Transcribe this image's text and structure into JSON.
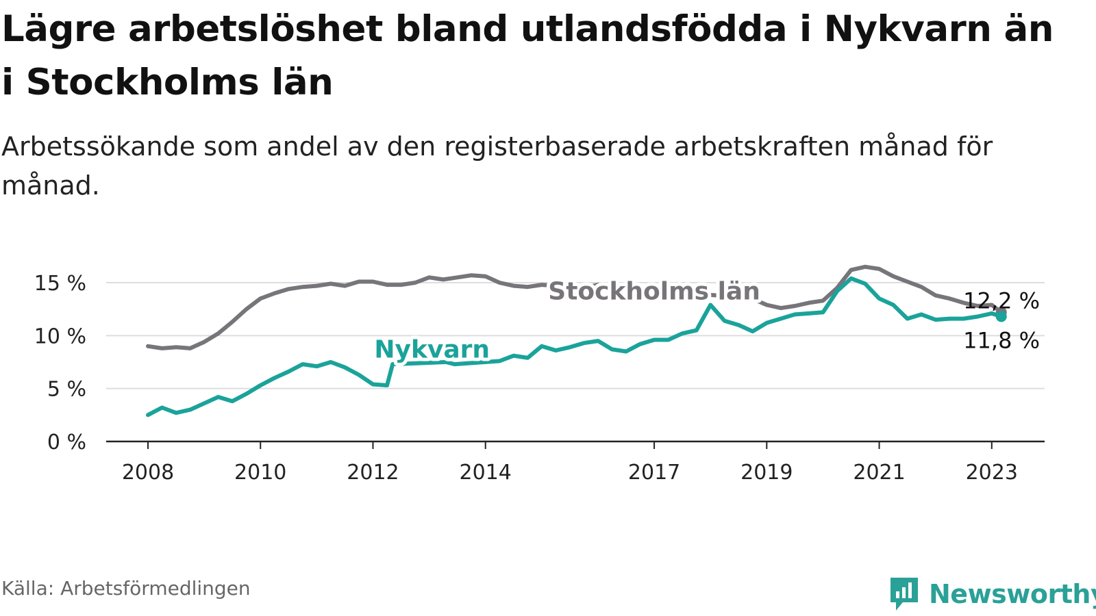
{
  "title": "Lägre arbetslöshet bland utlandsfödda i Nykvarn än i Stockholms län",
  "subtitle": "Arbetssökande som andel av den registerbaserade arbetskraften månad för månad.",
  "source": "Källa: Arbetsförmedlingen",
  "brand": {
    "name": "Newsworthy",
    "icon": "newsworthy-logo-icon",
    "color": "#2aa197"
  },
  "colors": {
    "nykvarn": "#1aa39a",
    "stockholm": "#78757a",
    "grid": "#dddddd",
    "axis": "#222222"
  },
  "chart_data": {
    "type": "line",
    "title": "Lägre arbetslöshet bland utlandsfödda i Nykvarn än i Stockholms län",
    "xlabel": "",
    "ylabel": "",
    "xlim": [
      2008,
      2023.9
    ],
    "ylim": [
      0,
      17
    ],
    "x_ticks": [
      {
        "value": 2008,
        "label": "2008"
      },
      {
        "value": 2010,
        "label": "2010"
      },
      {
        "value": 2012,
        "label": "2012"
      },
      {
        "value": 2014,
        "label": "2014"
      },
      {
        "value": 2017,
        "label": "2017"
      },
      {
        "value": 2019,
        "label": "2019"
      },
      {
        "value": 2021,
        "label": "2021"
      },
      {
        "value": 2023,
        "label": "2023"
      }
    ],
    "y_ticks": [
      {
        "value": 0,
        "label": "0 %"
      },
      {
        "value": 5,
        "label": "5 %"
      },
      {
        "value": 10,
        "label": "10 %"
      },
      {
        "value": 15,
        "label": "15 %"
      }
    ],
    "series": [
      {
        "name": "Stockholms län",
        "color": "#78757a",
        "end_label": "12,2 %",
        "points": [
          [
            2008.0,
            9.0
          ],
          [
            2008.25,
            8.8
          ],
          [
            2008.5,
            8.9
          ],
          [
            2008.75,
            8.8
          ],
          [
            2009.0,
            9.4
          ],
          [
            2009.25,
            10.2
          ],
          [
            2009.5,
            11.3
          ],
          [
            2009.75,
            12.5
          ],
          [
            2010.0,
            13.5
          ],
          [
            2010.25,
            14.0
          ],
          [
            2010.5,
            14.4
          ],
          [
            2010.75,
            14.6
          ],
          [
            2011.0,
            14.7
          ],
          [
            2011.25,
            14.9
          ],
          [
            2011.5,
            14.7
          ],
          [
            2011.75,
            15.1
          ],
          [
            2012.0,
            15.1
          ],
          [
            2012.25,
            14.8
          ],
          [
            2012.5,
            14.8
          ],
          [
            2012.75,
            15.0
          ],
          [
            2013.0,
            15.5
          ],
          [
            2013.25,
            15.3
          ],
          [
            2013.5,
            15.5
          ],
          [
            2013.75,
            15.7
          ],
          [
            2014.0,
            15.6
          ],
          [
            2014.25,
            15.0
          ],
          [
            2014.5,
            14.7
          ],
          [
            2014.75,
            14.6
          ],
          [
            2015.0,
            14.8
          ],
          [
            2015.25,
            14.7
          ],
          [
            2015.5,
            14.5
          ],
          [
            2015.75,
            14.5
          ],
          [
            2016.0,
            14.8
          ],
          [
            2016.25,
            14.7
          ],
          [
            2016.4,
            14.4
          ],
          [
            2018.7,
            13.6
          ],
          [
            2019.0,
            12.9
          ],
          [
            2019.25,
            12.6
          ],
          [
            2019.5,
            12.8
          ],
          [
            2019.75,
            13.1
          ],
          [
            2020.0,
            13.3
          ],
          [
            2020.25,
            14.5
          ],
          [
            2020.5,
            16.2
          ],
          [
            2020.75,
            16.5
          ],
          [
            2021.0,
            16.3
          ],
          [
            2021.25,
            15.6
          ],
          [
            2021.5,
            15.1
          ],
          [
            2021.75,
            14.6
          ],
          [
            2022.0,
            13.8
          ],
          [
            2022.25,
            13.5
          ],
          [
            2022.5,
            13.1
          ],
          [
            2022.75,
            12.8
          ],
          [
            2023.0,
            12.9
          ],
          [
            2023.17,
            12.2
          ]
        ]
      },
      {
        "name": "Nykvarn",
        "color": "#1aa39a",
        "end_label": "11,8 %",
        "points": [
          [
            2008.0,
            2.5
          ],
          [
            2008.25,
            3.2
          ],
          [
            2008.5,
            2.7
          ],
          [
            2008.75,
            3.0
          ],
          [
            2009.0,
            3.6
          ],
          [
            2009.25,
            4.2
          ],
          [
            2009.5,
            3.8
          ],
          [
            2009.75,
            4.5
          ],
          [
            2010.0,
            5.3
          ],
          [
            2010.25,
            6.0
          ],
          [
            2010.5,
            6.6
          ],
          [
            2010.75,
            7.3
          ],
          [
            2011.0,
            7.1
          ],
          [
            2011.25,
            7.5
          ],
          [
            2011.5,
            7.0
          ],
          [
            2011.75,
            6.3
          ],
          [
            2012.0,
            5.4
          ],
          [
            2012.25,
            5.3
          ],
          [
            2012.35,
            7.3
          ],
          [
            2013.3,
            7.5
          ],
          [
            2013.45,
            7.3
          ],
          [
            2014.25,
            7.6
          ],
          [
            2014.5,
            8.1
          ],
          [
            2014.75,
            7.9
          ],
          [
            2015.0,
            9.0
          ],
          [
            2015.25,
            8.6
          ],
          [
            2015.5,
            8.9
          ],
          [
            2015.75,
            9.3
          ],
          [
            2016.0,
            9.5
          ],
          [
            2016.25,
            8.7
          ],
          [
            2016.5,
            8.5
          ],
          [
            2016.75,
            9.2
          ],
          [
            2017.0,
            9.6
          ],
          [
            2017.25,
            9.6
          ],
          [
            2017.5,
            10.2
          ],
          [
            2017.75,
            10.5
          ],
          [
            2018.0,
            12.9
          ],
          [
            2018.25,
            11.4
          ],
          [
            2018.5,
            11.0
          ],
          [
            2018.75,
            10.4
          ],
          [
            2019.0,
            11.2
          ],
          [
            2019.25,
            11.6
          ],
          [
            2019.5,
            12.0
          ],
          [
            2019.75,
            12.1
          ],
          [
            2020.0,
            12.2
          ],
          [
            2020.25,
            14.2
          ],
          [
            2020.5,
            15.4
          ],
          [
            2020.75,
            14.9
          ],
          [
            2021.0,
            13.5
          ],
          [
            2021.25,
            12.9
          ],
          [
            2021.5,
            11.6
          ],
          [
            2021.75,
            12.0
          ],
          [
            2022.0,
            11.5
          ],
          [
            2022.25,
            11.6
          ],
          [
            2022.5,
            11.6
          ],
          [
            2022.75,
            11.8
          ],
          [
            2023.0,
            12.1
          ],
          [
            2023.17,
            11.8
          ]
        ]
      }
    ],
    "annotations": [
      {
        "text": "Stockholms län",
        "series": "Stockholms län",
        "x": 2017.0,
        "y": 14.2
      },
      {
        "text": "Nykvarn",
        "series": "Nykvarn",
        "x": 2013.05,
        "y": 8.7
      }
    ]
  }
}
